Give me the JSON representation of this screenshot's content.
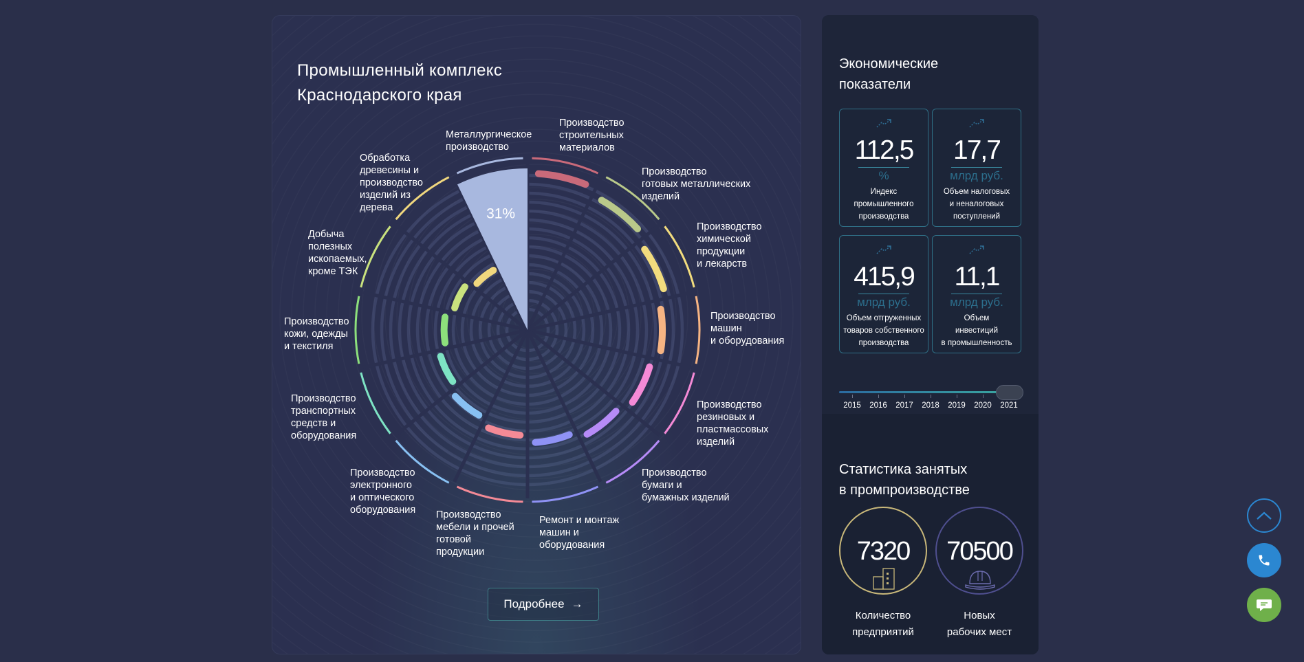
{
  "industry_panel": {
    "title_line1": "Промышленный комплекс",
    "title_line2": "Краснодарского края",
    "more_button_label": "Подробнее",
    "more_button_arrow": "→"
  },
  "chart_data": {
    "type": "radial-bar",
    "selected_category": "Металлургическое производство",
    "selected_value_label": "31%",
    "selected_value": 31,
    "categories": [
      {
        "lines": [
          "Производство",
          "строительных",
          "материалов"
        ],
        "color": "#c96a7a"
      },
      {
        "lines": [
          "Производство",
          "готовых металлических",
          "изделий"
        ],
        "color": "#b9c98a"
      },
      {
        "lines": [
          "Производство",
          "химической",
          "продукции",
          "и лекарств"
        ],
        "color": "#f2dc7e"
      },
      {
        "lines": [
          "Производство",
          "машин",
          "и оборудования"
        ],
        "color": "#f6b483"
      },
      {
        "lines": [
          "Производство",
          "резиновых и",
          "пластмассовых",
          "изделий"
        ],
        "color": "#f48ad6"
      },
      {
        "lines": [
          "Производство",
          "бумаги и",
          "бумажных изделий"
        ],
        "color": "#b68bf7"
      },
      {
        "lines": [
          "Ремонт и монтаж",
          "машин и",
          "оборудования"
        ],
        "color": "#8f92f5"
      },
      {
        "lines": [
          "Производство",
          "мебели и прочей",
          "готовой",
          "продукции"
        ],
        "color": "#f48a96"
      },
      {
        "lines": [
          "Производство",
          "электронного",
          "и оптического",
          "оборудования"
        ],
        "color": "#88c0f2"
      },
      {
        "lines": [
          "Производство",
          "транспортных",
          "средств и",
          "оборудования"
        ],
        "color": "#7ee3c4"
      },
      {
        "lines": [
          "Производство",
          "кожи, одежды",
          "и текстиля"
        ],
        "color": "#8de07c"
      },
      {
        "lines": [
          "Добыча",
          "полезных",
          "ископаемых,",
          "кроме ТЭК"
        ],
        "color": "#c9e27e"
      },
      {
        "lines": [
          "Обработка",
          "древесины и",
          "производство",
          "изделий из",
          "дерева"
        ],
        "color": "#f0d77e"
      },
      {
        "lines": [
          "Металлургическое",
          "производство"
        ],
        "color": "#a8b8df"
      }
    ]
  },
  "economics": {
    "title_line1": "Экономические",
    "title_line2": "показатели",
    "kpis": [
      {
        "icon": "trend-up-icon",
        "value": "112,5",
        "unit": "%",
        "label_lines": [
          "Индекс",
          "промышленного",
          "производства"
        ]
      },
      {
        "icon": "trend-up-icon",
        "value": "17,7",
        "unit": "млрд руб.",
        "label_lines": [
          "Объем налоговых",
          "и неналоговых",
          "поступлений"
        ]
      },
      {
        "icon": "trend-up-icon",
        "value": "415,9",
        "unit": "млрд руб.",
        "label_lines": [
          "Объем отгруженных",
          "товаров собственного",
          "производства"
        ]
      },
      {
        "icon": "trend-up-icon",
        "value": "11,1",
        "unit": "млрд руб.",
        "label_lines": [
          "Объем",
          "инвестиций",
          "в промышленность"
        ]
      }
    ],
    "years": [
      "2015",
      "2016",
      "2017",
      "2018",
      "2019",
      "2020",
      "2021"
    ],
    "selected_year": "2021"
  },
  "employment": {
    "title_line1": "Статистика занятых",
    "title_line2": "в промпроизводстве",
    "stats": [
      {
        "value": "7320",
        "label_lines": [
          "Количество",
          "предприятий"
        ],
        "icon": "building-icon",
        "ring_color": "#c9b87a"
      },
      {
        "value": "70500",
        "label_lines": [
          "Новых",
          "рабочих мест"
        ],
        "icon": "hard-hat-icon",
        "ring_color": "#4f4f8f"
      }
    ]
  },
  "floating_buttons": {
    "scroll_top_icon": "chevron-up-icon",
    "call_icon": "phone-icon",
    "chat_icon": "chat-icon"
  },
  "colors": {
    "background": "#2a2f4a",
    "accent_blue": "#2b87d1",
    "accent_green": "#6fb04a"
  }
}
